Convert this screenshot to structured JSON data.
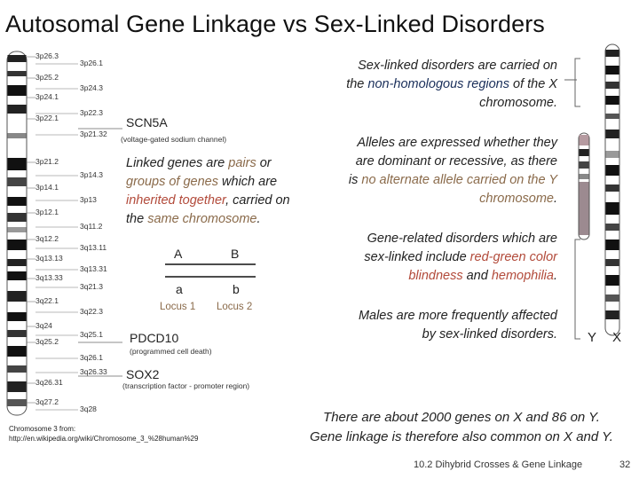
{
  "title": "Autosomal Gene Linkage  vs   Sex-Linked Disorders",
  "chromosome3": {
    "left_bands": [
      "3p26.3",
      "3p25.2",
      "3p24.1",
      "3p22.1",
      "3p21.2",
      "3p14.1",
      "3p12.1",
      "3q12.2",
      "3q13.13",
      "3q13.33",
      "3q22.1",
      "3q24",
      "3q25.2",
      "3q26.31",
      "3q27.2"
    ],
    "right_bands": [
      "3p26.1",
      "3p24.3",
      "3p22.3",
      "3p21.32",
      "3p14.3",
      "3p13",
      "3q11.2",
      "3q13.11",
      "3q13.31",
      "3q21.3",
      "3q22.3",
      "3q25.1",
      "3q26.1",
      "3q26.33",
      "3q28"
    ],
    "source_line1": "Chromosome 3 from:",
    "source_line2": "http://en.wikipedia.org/wiki/Chromosome_3_%28human%29"
  },
  "genes": {
    "scn5a": {
      "name": "SCN5A",
      "desc": "(voltage-gated sodium channel)"
    },
    "pdcd10": {
      "name": "PDCD10",
      "desc": "(programmed cell death)"
    },
    "sox2": {
      "name": "SOX2",
      "desc": "(transcription factor - promoter region)"
    }
  },
  "linked_text": {
    "p1": "Linked genes are ",
    "p2": "pairs",
    "p3": " or ",
    "p4": "groups of genes",
    "p5": " which are ",
    "p6": "inherited together",
    "p7": ", carried on the ",
    "p8": "same chromosome",
    "p9": "."
  },
  "alleles": {
    "A": "A",
    "B": "B",
    "a": "a",
    "b": "b",
    "locus1": "Locus 1",
    "locus2": "Locus 2"
  },
  "sex_linked": {
    "t1_a": "Sex-linked disorders are carried on the ",
    "t1_b": "non-homologous regions",
    "t1_c": " of the X chromosome.",
    "t2_a": "Alleles are expressed whether they are dominant or recessive, as there is ",
    "t2_b": "no alternate allele carried on the Y chromosome",
    "t2_c": ".",
    "t3_a": "Gene-related disorders which are sex-linked include ",
    "t3_b": "red-green color blindness",
    "t3_c": " and ",
    "t3_d": "hemophilia",
    "t3_e": ".",
    "t4": "Males are more frequently affected by sex-linked disorders."
  },
  "xy": {
    "y_label": "Y",
    "x_label": "X"
  },
  "summary": {
    "line1": "There are about 2000 genes on X and 86 on Y.",
    "line2": "Gene linkage is therefore also common on X and Y."
  },
  "footer": {
    "caption": "10.2 Dihybrid Crosses & Gene Linkage",
    "page": "32"
  },
  "colors": {
    "brown": "#8a6a4a",
    "red": "#b24a3a",
    "green": "#7f9a2e",
    "blue": "#1a2f5a"
  }
}
